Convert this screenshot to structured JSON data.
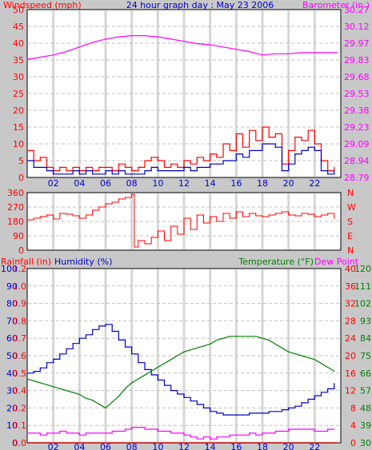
{
  "header": {
    "title": "24 hour graph day : May 23 2006",
    "left_label": "Windspeed (mph)",
    "right_label": "Barometer (in.)"
  },
  "colors": {
    "background": "#c8c8c8",
    "plot_bg": "#ffffff",
    "grid": "#c0c0c0",
    "wind": "#ff0000",
    "wind_avg": "#0000cc",
    "barometer": "#ff00ff",
    "direction": "#ff0000",
    "humidity": "#0000cc",
    "temperature": "#008000",
    "dewpoint": "#ff00ff",
    "rain": "#cc0000",
    "label_red": "#ff0000",
    "label_magenta": "#ff00ff",
    "label_blue": "#0000cc",
    "label_green": "#008000"
  },
  "x_ticks": [
    "02",
    "04",
    "06",
    "08",
    "10",
    "12",
    "14",
    "16",
    "18",
    "20",
    "22"
  ],
  "chart_data": [
    {
      "type": "line",
      "title": "24 hour graph day : May 23 2006",
      "ylabel": "Windspeed (mph)",
      "y2label": "Barometer (in.)",
      "ylim": [
        0,
        50
      ],
      "y_ticks": [
        "0",
        "5",
        "10",
        "15",
        "20",
        "25",
        "30",
        "35",
        "40",
        "45",
        "50"
      ],
      "y2lim": [
        28.79,
        30.27
      ],
      "y2_ticks": [
        "28.79",
        "28.94",
        "29.09",
        "29.23",
        "29.38",
        "29.53",
        "29.68",
        "29.83",
        "29.97",
        "30.12",
        "30.27"
      ],
      "series": [
        {
          "name": "Windspeed (mph)",
          "hours": [
            0,
            0.5,
            1,
            1.5,
            2,
            2.5,
            3,
            3.5,
            4,
            4.5,
            5,
            5.5,
            6,
            6.5,
            7,
            7.5,
            8,
            8.5,
            9,
            9.5,
            10,
            10.5,
            11,
            11.5,
            12,
            12.5,
            13,
            13.5,
            14,
            14.5,
            15,
            15.5,
            16,
            16.5,
            17,
            17.5,
            18,
            18.5,
            19,
            19.5,
            20,
            20.5,
            21,
            21.5,
            22,
            22.5,
            23,
            23.5
          ],
          "values": [
            8,
            5,
            6,
            3,
            2,
            3,
            2,
            3,
            2,
            3,
            2,
            3,
            3,
            2,
            4,
            3,
            2,
            3,
            5,
            6,
            5,
            3,
            4,
            3,
            5,
            4,
            6,
            5,
            7,
            6,
            10,
            8,
            13,
            9,
            14,
            11,
            15,
            12,
            13,
            4,
            8,
            12,
            11,
            14,
            10,
            5,
            2,
            3
          ]
        },
        {
          "name": "Average wind (mph)",
          "hours": [
            0,
            0.5,
            1,
            1.5,
            2,
            2.5,
            3,
            3.5,
            4,
            4.5,
            5,
            5.5,
            6,
            6.5,
            7,
            7.5,
            8,
            8.5,
            9,
            9.5,
            10,
            10.5,
            11,
            11.5,
            12,
            12.5,
            13,
            13.5,
            14,
            14.5,
            15,
            15.5,
            16,
            16.5,
            17,
            17.5,
            18,
            18.5,
            19,
            19.5,
            20,
            20.5,
            21,
            21.5,
            22,
            22.5,
            23,
            23.5
          ],
          "values": [
            5,
            3,
            3,
            2,
            1,
            1,
            1,
            2,
            1,
            2,
            1,
            1,
            2,
            1,
            2,
            1,
            1,
            1,
            2,
            3,
            2,
            2,
            2,
            2,
            3,
            2,
            3,
            3,
            4,
            4,
            5,
            5,
            7,
            6,
            8,
            8,
            10,
            10,
            9,
            2,
            4,
            7,
            8,
            9,
            8,
            2,
            1,
            2
          ]
        },
        {
          "name": "Barometer (in.)",
          "axis": "right",
          "hours": [
            0,
            1,
            2,
            3,
            4,
            5,
            6,
            7,
            8,
            9,
            10,
            11,
            12,
            13,
            14,
            15,
            16,
            17,
            18,
            19,
            20,
            21,
            22,
            23,
            23.7
          ],
          "values": [
            29.83,
            29.85,
            29.87,
            29.9,
            29.94,
            29.98,
            30.01,
            30.03,
            30.04,
            30.04,
            30.03,
            30.01,
            29.99,
            29.97,
            29.96,
            29.94,
            29.92,
            29.9,
            29.87,
            29.88,
            29.88,
            29.89,
            29.89,
            29.89,
            29.89
          ]
        }
      ]
    },
    {
      "type": "line",
      "ylim": [
        0,
        360
      ],
      "y_ticks": [
        "0",
        "90",
        "180",
        "270",
        "360"
      ],
      "y2_ticks": [
        "N",
        "E",
        "S",
        "W",
        "N"
      ],
      "series": [
        {
          "name": "Wind direction",
          "hours": [
            0,
            0.5,
            1,
            1.5,
            2,
            2.5,
            3,
            3.5,
            4,
            4.5,
            5,
            5.5,
            6,
            6.5,
            7,
            7.5,
            8,
            8.2,
            8.5,
            9,
            9.5,
            10,
            10.5,
            11,
            11.5,
            12,
            12.5,
            13,
            13.5,
            14,
            14.5,
            15,
            15.5,
            16,
            16.5,
            17,
            17.5,
            18,
            18.5,
            19,
            19.5,
            20,
            20.5,
            21,
            21.5,
            22,
            22.5,
            23,
            23.5
          ],
          "values": [
            190,
            200,
            210,
            220,
            195,
            230,
            225,
            215,
            200,
            220,
            250,
            270,
            290,
            300,
            320,
            330,
            350,
            20,
            60,
            40,
            80,
            120,
            60,
            150,
            100,
            200,
            130,
            220,
            170,
            210,
            180,
            230,
            200,
            240,
            210,
            230,
            215,
            210,
            220,
            230,
            240,
            220,
            215,
            230,
            225,
            210,
            220,
            230,
            200
          ]
        }
      ]
    },
    {
      "type": "line",
      "left_labels": [
        "Rainfall (in)",
        "Humidity (%)"
      ],
      "right_labels": [
        "Temperature (°F)",
        "Dew Point"
      ],
      "humidity_ticks": [
        "0",
        "10",
        "20",
        "30",
        "40",
        "50",
        "60",
        "70",
        "80",
        "90",
        "100"
      ],
      "rain_ticks": [
        "0.0",
        "0.1",
        "0.2",
        "0.4",
        "0.5",
        "0.6",
        "0.7",
        "0.8",
        "0.9",
        "1.0",
        "1.2"
      ],
      "temp_c_ticks": [
        "0",
        "4",
        "8",
        "12",
        "16",
        "20",
        "24",
        "28",
        "32",
        "36",
        "40"
      ],
      "temp_f_ticks": [
        "30",
        "39",
        "48",
        "57",
        "66",
        "75",
        "84",
        "93",
        "102",
        "111",
        "120"
      ],
      "ylim": [
        0,
        100
      ],
      "y2lim": [
        30,
        120
      ],
      "series": [
        {
          "name": "Humidity (%)",
          "axis": "left",
          "hours": [
            0,
            0.5,
            1,
            1.5,
            2,
            2.5,
            3,
            3.5,
            4,
            4.5,
            5,
            5.5,
            6,
            6.5,
            7,
            7.5,
            8,
            8.5,
            9,
            9.5,
            10,
            10.5,
            11,
            11.5,
            12,
            12.5,
            13,
            13.5,
            14,
            14.5,
            15,
            15.5,
            16,
            16.5,
            17,
            17.5,
            18,
            18.5,
            19,
            19.5,
            20,
            20.5,
            21,
            21.5,
            22,
            22.5,
            23,
            23.5
          ],
          "values": [
            40,
            41,
            43,
            46,
            48,
            51,
            54,
            57,
            60,
            62,
            65,
            67,
            68,
            64,
            59,
            55,
            51,
            46,
            42,
            39,
            36,
            33,
            30,
            28,
            26,
            24,
            22,
            20,
            18,
            17,
            16,
            16,
            16,
            16,
            17,
            17,
            17,
            18,
            18,
            19,
            20,
            21,
            23,
            25,
            27,
            29,
            31,
            34
          ]
        },
        {
          "name": "Temperature (°F)",
          "axis": "right",
          "hours": [
            0,
            0.5,
            1,
            1.5,
            2,
            2.5,
            3,
            3.5,
            4,
            4.5,
            5,
            5.5,
            6,
            6.5,
            7,
            7.5,
            8,
            8.5,
            9,
            9.5,
            10,
            10.5,
            11,
            11.5,
            12,
            12.5,
            13,
            13.5,
            14,
            14.5,
            15,
            15.5,
            16,
            16.5,
            17,
            17.5,
            18,
            18.5,
            19,
            19.5,
            20,
            20.5,
            21,
            21.5,
            22,
            22.5,
            23,
            23.5
          ],
          "values": [
            63,
            62,
            61,
            60,
            59,
            58,
            57,
            56,
            55,
            53,
            52,
            50,
            48,
            51,
            54,
            58,
            61,
            63,
            65,
            67,
            69,
            71,
            73,
            75,
            77,
            78,
            79,
            80,
            81,
            83,
            84,
            85,
            85,
            85,
            85,
            85,
            84,
            83,
            81,
            79,
            77,
            76,
            75,
            74,
            73,
            71,
            69,
            67
          ]
        },
        {
          "name": "Dew Point",
          "axis": "right",
          "hours": [
            0,
            0.5,
            1,
            1.5,
            2,
            2.5,
            3,
            3.5,
            4,
            4.5,
            5,
            5.5,
            6,
            6.5,
            7,
            7.5,
            8,
            8.5,
            9,
            9.5,
            10,
            10.5,
            11,
            11.5,
            12,
            12.5,
            13,
            13.5,
            14,
            14.5,
            15,
            15.5,
            16,
            16.5,
            17,
            17.5,
            18,
            18.5,
            19,
            19.5,
            20,
            20.5,
            21,
            21.5,
            22,
            22.5,
            23,
            23.5
          ],
          "values": [
            35,
            35,
            34,
            35,
            35,
            36,
            35,
            35,
            34,
            35,
            35,
            35,
            35,
            36,
            36,
            37,
            38,
            38,
            37,
            37,
            36,
            36,
            35,
            35,
            34,
            33,
            32,
            33,
            32,
            33,
            33,
            34,
            34,
            34,
            35,
            34,
            35,
            35,
            36,
            36,
            37,
            37,
            37,
            37,
            36,
            36,
            37,
            37
          ]
        },
        {
          "name": "Rainfall (in)",
          "axis": "rain",
          "hours": [
            0,
            23.7
          ],
          "values": [
            0,
            0
          ]
        }
      ]
    }
  ]
}
